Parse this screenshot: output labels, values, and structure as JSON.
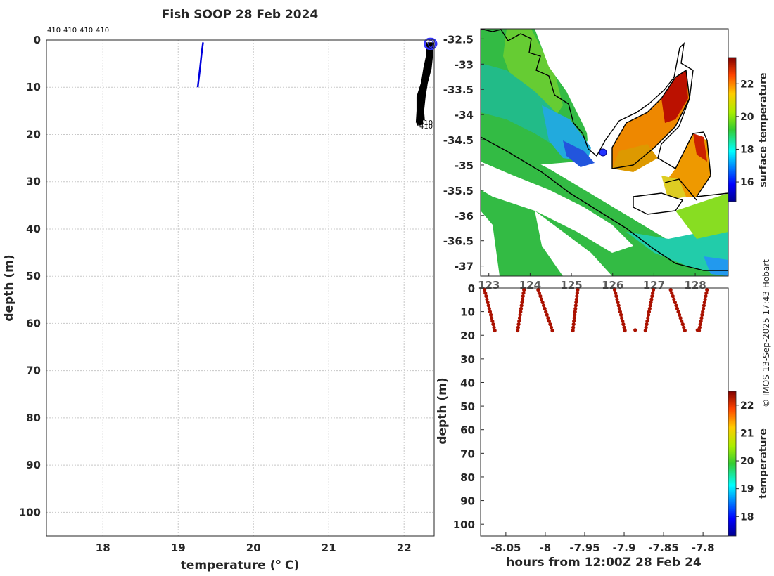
{
  "figure_title": "Fish SOOP 28 Feb 2024",
  "credit": "© IMOS 13-Sep-2025 17:43 Hobart",
  "colors": {
    "profile_line": "#0000dd",
    "profile_black": "#000000",
    "profile_marker": "#3333ff",
    "section_points": "#aa1100",
    "map_land_outline": "#000000"
  },
  "chart_data": [
    {
      "type": "line",
      "name": "temperature-depth-profiles",
      "title": "Fish SOOP 28 Feb 2024",
      "xlabel": "temperature (° C)",
      "ylabel": "depth (m)",
      "xlim": [
        17.25,
        22.4
      ],
      "ylim": [
        0,
        105
      ],
      "y_reversed": true,
      "xticks": [
        18,
        19,
        20,
        21,
        22
      ],
      "yticks": [
        0,
        10,
        20,
        30,
        40,
        50,
        60,
        70,
        80,
        90,
        100
      ],
      "profile_id_labels": [
        "410",
        "410",
        "410",
        "410"
      ],
      "series": [
        {
          "name": "profile 410 (blue)",
          "color": "#0000dd",
          "points": [
            [
              19.33,
              0.5
            ],
            [
              19.31,
              3
            ],
            [
              19.29,
              6
            ],
            [
              19.26,
              10
            ]
          ]
        },
        {
          "name": "profile 410 (a)",
          "points": [
            [
              22.33,
              0.5
            ],
            [
              22.32,
              3
            ],
            [
              22.3,
              6
            ],
            [
              22.25,
              9
            ],
            [
              22.21,
              12
            ],
            [
              22.19,
              15
            ],
            [
              22.2,
              17.5
            ]
          ]
        },
        {
          "name": "profile 410 (b)",
          "points": [
            [
              22.36,
              0.5
            ],
            [
              22.35,
              3
            ],
            [
              22.33,
              6
            ],
            [
              22.28,
              9
            ],
            [
              22.24,
              12
            ],
            [
              22.22,
              15
            ],
            [
              22.24,
              17.8
            ]
          ]
        },
        {
          "name": "profile 410 (c)",
          "points": [
            [
              22.38,
              0.5
            ],
            [
              22.37,
              3
            ],
            [
              22.35,
              6
            ],
            [
              22.3,
              9
            ],
            [
              22.27,
              12
            ],
            [
              22.25,
              15
            ],
            [
              22.26,
              17
            ]
          ]
        },
        {
          "name": "profile 410 (d)",
          "points": [
            [
              22.34,
              0.5
            ],
            [
              22.33,
              3
            ],
            [
              22.31,
              6
            ],
            [
              22.27,
              9
            ],
            [
              22.22,
              12
            ],
            [
              22.2,
              15
            ],
            [
              22.22,
              18
            ]
          ]
        }
      ],
      "end_labels": [
        "410",
        "410"
      ]
    },
    {
      "type": "heatmap",
      "name": "surface-temperature-map",
      "ylim": [
        -37.2,
        -32.3
      ],
      "xlim": [
        122.8,
        128.8
      ],
      "yticks": [
        "-32.5",
        "-33",
        "-33.5",
        "-34",
        "-34.5",
        "-35",
        "-35.5",
        "-36",
        "-36.5",
        "-37"
      ],
      "xticks": [
        "123",
        "124",
        "125",
        "126",
        "127",
        "128"
      ],
      "xtick_labels_shown": [
        "123",
        "124",
        "125",
        "126",
        "127",
        "128"
      ],
      "ship_position": [
        125.9,
        -34.7
      ],
      "colorbar": {
        "label": "surface temperature",
        "ticks": [
          "16",
          "18",
          "20",
          "22"
        ],
        "range": [
          14.8,
          23.6
        ]
      }
    },
    {
      "type": "scatter",
      "name": "depth-time-section",
      "xlabel": "hours from 12:00Z 28 Feb 24",
      "ylabel": "depth (m)",
      "xlim": [
        -8.082,
        -7.768
      ],
      "ylim": [
        0,
        105
      ],
      "y_reversed": true,
      "xticks": [
        "-8.05",
        "-8",
        "-7.95",
        "-7.9",
        "-7.85",
        "-7.8"
      ],
      "yticks": [
        "0",
        "10",
        "20",
        "30",
        "40",
        "50",
        "60",
        "70",
        "80",
        "90",
        "100"
      ],
      "casts": [
        {
          "t0": -8.077,
          "t1": -8.064,
          "dir": "down"
        },
        {
          "t0": -8.027,
          "t1": -8.035,
          "dir": "up"
        },
        {
          "t0": -8.009,
          "t1": -7.991,
          "dir": "down"
        },
        {
          "t0": -7.959,
          "t1": -7.965,
          "dir": "up"
        },
        {
          "t0": -7.912,
          "t1": -7.899,
          "dir": "down"
        },
        {
          "t0": -7.863,
          "t1": -7.873,
          "dir": "up"
        },
        {
          "t0": -7.841,
          "t1": -7.823,
          "dir": "down"
        },
        {
          "t0": -7.795,
          "t1": -7.805,
          "dir": "up"
        }
      ],
      "colorbar": {
        "label": "temperature",
        "ticks": [
          "18",
          "19",
          "20",
          "21",
          "22"
        ],
        "range": [
          17.3,
          22.5
        ]
      }
    }
  ]
}
